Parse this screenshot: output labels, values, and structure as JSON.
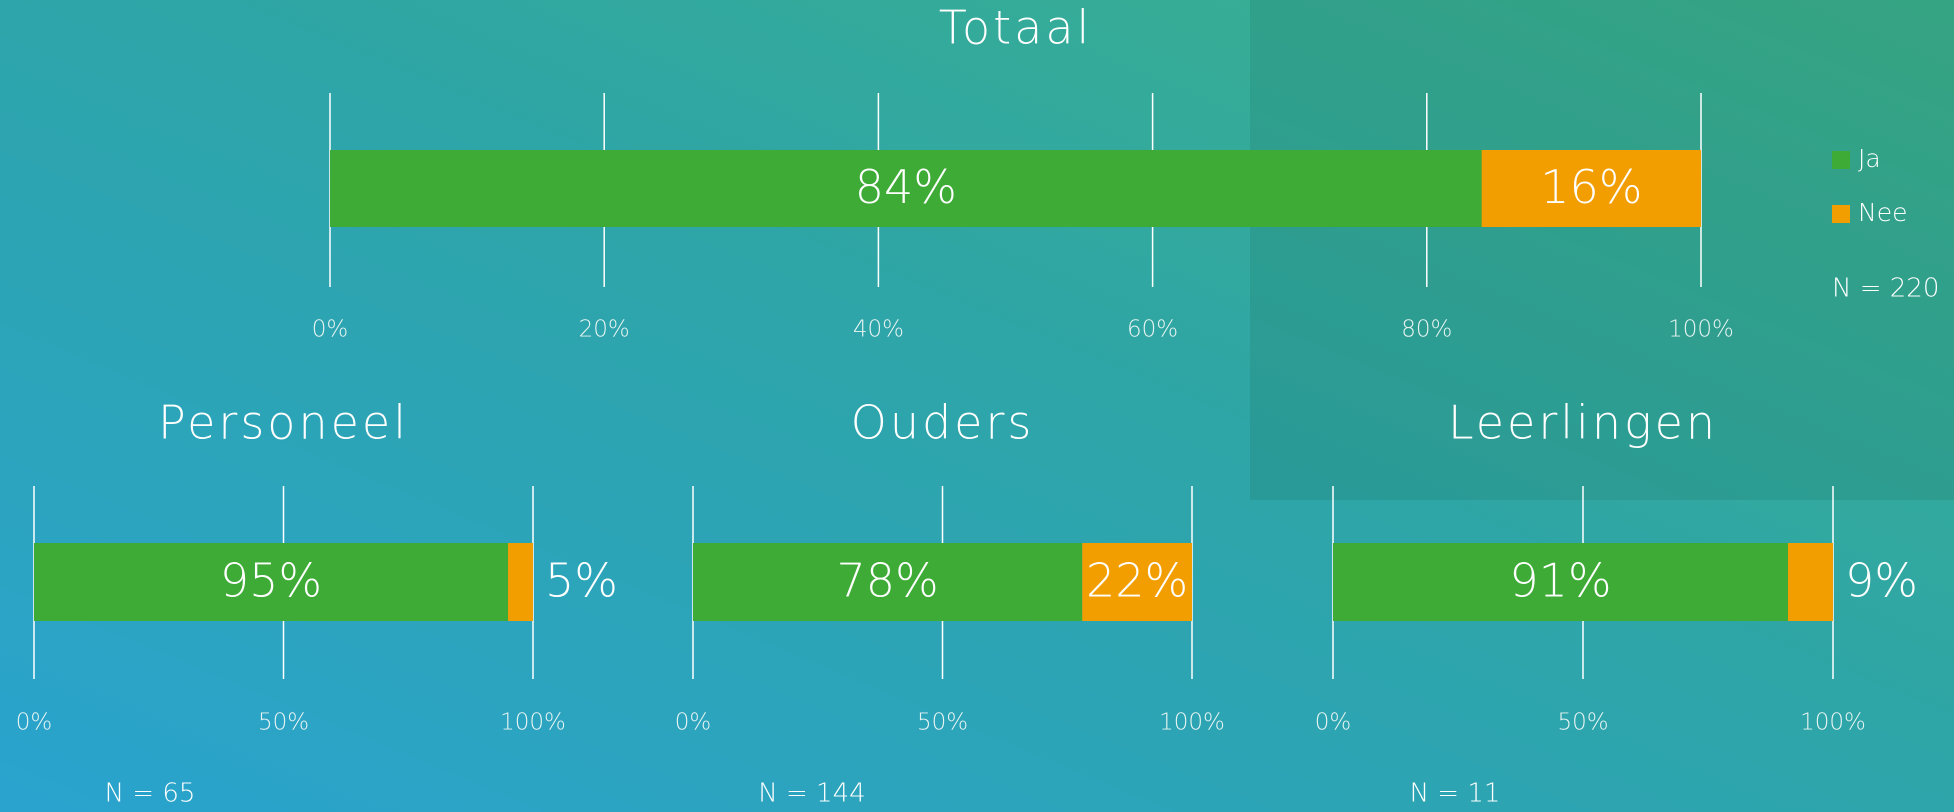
{
  "chart_data": [
    {
      "type": "bar",
      "orientation": "horizontal",
      "title": "Totaal",
      "series": [
        {
          "name": "Ja",
          "color": "#3dab35",
          "values": [
            84
          ],
          "value_labels": [
            "84%"
          ]
        },
        {
          "name": "Nee",
          "color": "#f29d00",
          "values": [
            16
          ],
          "value_labels": [
            "16%"
          ]
        }
      ],
      "xlim": [
        0,
        100
      ],
      "xticks": [
        {
          "value": 0,
          "label": "0%"
        },
        {
          "value": 20,
          "label": "20%"
        },
        {
          "value": 40,
          "label": "40%"
        },
        {
          "value": 60,
          "label": "60%"
        },
        {
          "value": 80,
          "label": "80%"
        },
        {
          "value": 100,
          "label": "100%"
        }
      ],
      "grid": true,
      "legend": "right",
      "annotation": "N = 220"
    },
    {
      "type": "bar",
      "orientation": "horizontal",
      "title": "Personeel",
      "series": [
        {
          "color": "#3dab35",
          "values": [
            95
          ],
          "value_labels": [
            "95%"
          ]
        },
        {
          "color": "#f29d00",
          "values": [
            5
          ],
          "value_labels": [
            "5%"
          ]
        }
      ],
      "xlim": [
        0,
        100
      ],
      "xticks": [
        {
          "value": 0,
          "label": "0%"
        },
        {
          "value": 50,
          "label": "50%"
        },
        {
          "value": 100,
          "label": "100%"
        }
      ],
      "grid": true,
      "annotation": "N = 65"
    },
    {
      "type": "bar",
      "orientation": "horizontal",
      "title": "Ouders",
      "series": [
        {
          "color": "#3dab35",
          "values": [
            78
          ],
          "value_labels": [
            "78%"
          ]
        },
        {
          "color": "#f29d00",
          "values": [
            22
          ],
          "value_labels": [
            "22%"
          ]
        }
      ],
      "xlim": [
        0,
        100
      ],
      "xticks": [
        {
          "value": 0,
          "label": "0%"
        },
        {
          "value": 50,
          "label": "50%"
        },
        {
          "value": 100,
          "label": "100%"
        }
      ],
      "grid": true,
      "annotation": "N = 144"
    },
    {
      "type": "bar",
      "orientation": "horizontal",
      "title": "Leerlingen",
      "series": [
        {
          "color": "#3dab35",
          "values": [
            91
          ],
          "value_labels": [
            "91%"
          ]
        },
        {
          "color": "#f29d00",
          "values": [
            9
          ],
          "value_labels": [
            "9%"
          ]
        }
      ],
      "xlim": [
        0,
        100
      ],
      "xticks": [
        {
          "value": 0,
          "label": "0%"
        },
        {
          "value": 50,
          "label": "50%"
        },
        {
          "value": 100,
          "label": "100%"
        }
      ],
      "grid": true,
      "annotation": "N = 11"
    }
  ]
}
